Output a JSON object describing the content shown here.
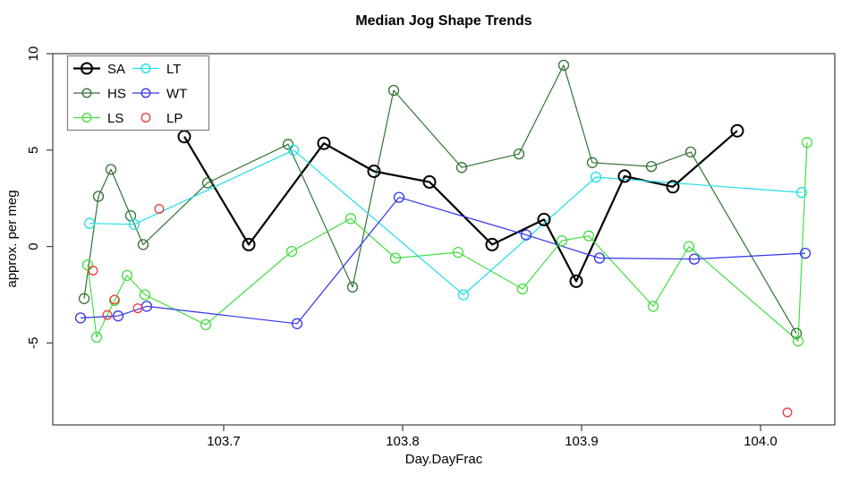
{
  "chart_data": {
    "type": "line",
    "title": "Median Jog Shape Trends",
    "xlabel": "Day.DayFrac",
    "ylabel": "approx. per meg",
    "xlim": [
      103.6045,
      104.0415
    ],
    "ylim": [
      -9.25,
      10
    ],
    "x_ticks": [
      103.7,
      103.8,
      103.9,
      104.0
    ],
    "x_tick_labels": [
      "103.7",
      "103.8",
      "103.9",
      "104.0"
    ],
    "y_ticks": [
      -5,
      0,
      5,
      10
    ],
    "y_tick_labels": [
      "-5",
      "0",
      "5",
      "10"
    ],
    "grid": false,
    "frame_color": "#4d4d4d",
    "text_color": "#000000",
    "legend_position": "top-left",
    "legend_columns": [
      [
        "SA",
        "HS",
        "LS"
      ],
      [
        "LT",
        "WT",
        "LP"
      ]
    ],
    "series": [
      {
        "name": "SA",
        "color": "#000000",
        "line": true,
        "marker": "circle-open",
        "line_width": 2.2,
        "marker_radius": 6.5,
        "marker_stroke": 2.0,
        "points": [
          [
            103.678,
            5.7
          ],
          [
            103.714,
            0.1
          ],
          [
            103.756,
            5.35
          ],
          [
            103.784,
            3.9
          ],
          [
            103.815,
            3.35
          ],
          [
            103.85,
            0.1
          ],
          [
            103.879,
            1.4
          ],
          [
            103.897,
            -1.8
          ],
          [
            103.924,
            3.65
          ],
          [
            103.951,
            3.1
          ],
          [
            103.987,
            6.0
          ]
        ]
      },
      {
        "name": "HS",
        "color": "#327232",
        "line": true,
        "marker": "circle-open",
        "line_width": 1.2,
        "marker_radius": 5.5,
        "marker_stroke": 1.3,
        "points": [
          [
            103.622,
            -2.7
          ],
          [
            103.63,
            2.6
          ],
          [
            103.637,
            4.0
          ],
          [
            103.648,
            1.6
          ],
          [
            103.655,
            0.1
          ],
          [
            103.691,
            3.3
          ],
          [
            103.736,
            5.3
          ],
          [
            103.772,
            -2.1
          ],
          [
            103.795,
            8.1
          ],
          [
            103.833,
            4.1
          ],
          [
            103.865,
            4.8
          ],
          [
            103.89,
            9.4
          ],
          [
            103.906,
            4.35
          ],
          [
            103.939,
            4.15
          ],
          [
            103.961,
            4.9
          ],
          [
            104.02,
            -4.5
          ]
        ]
      },
      {
        "name": "LS",
        "color": "#44dd44",
        "line": true,
        "marker": "circle-open",
        "line_width": 1.2,
        "marker_radius": 5.5,
        "marker_stroke": 1.3,
        "points": [
          [
            103.624,
            -0.95
          ],
          [
            103.629,
            -4.7
          ],
          [
            103.639,
            -2.8
          ],
          [
            103.646,
            -1.5
          ],
          [
            103.656,
            -2.5
          ],
          [
            103.69,
            -4.05
          ],
          [
            103.738,
            -0.25
          ],
          [
            103.771,
            1.45
          ],
          [
            103.796,
            -0.6
          ],
          [
            103.831,
            -0.3
          ],
          [
            103.867,
            -2.2
          ],
          [
            103.889,
            0.3
          ],
          [
            103.904,
            0.55
          ],
          [
            103.94,
            -3.1
          ],
          [
            103.96,
            0.0
          ],
          [
            104.021,
            -4.9
          ],
          [
            104.026,
            5.4
          ]
        ]
      },
      {
        "name": "LT",
        "color": "#22dde8",
        "line": true,
        "marker": "circle-open",
        "line_width": 1.2,
        "marker_radius": 5.5,
        "marker_stroke": 1.3,
        "points": [
          [
            103.625,
            1.2
          ],
          [
            103.65,
            1.15
          ],
          [
            103.739,
            5.0
          ],
          [
            103.834,
            -2.5
          ],
          [
            103.908,
            3.6
          ],
          [
            104.023,
            2.8
          ]
        ]
      },
      {
        "name": "WT",
        "color": "#3333ee",
        "line": true,
        "marker": "circle-open",
        "line_width": 1.2,
        "marker_radius": 5.5,
        "marker_stroke": 1.3,
        "points": [
          [
            103.62,
            -3.7
          ],
          [
            103.641,
            -3.6
          ],
          [
            103.657,
            -3.1
          ],
          [
            103.741,
            -4.0
          ],
          [
            103.798,
            2.55
          ],
          [
            103.869,
            0.6
          ],
          [
            103.91,
            -0.6
          ],
          [
            103.963,
            -0.65
          ],
          [
            104.025,
            -0.35
          ]
        ]
      },
      {
        "name": "LP",
        "color": "#ee3b3b",
        "line": false,
        "marker": "circle-open",
        "line_width": 1.2,
        "marker_radius": 4.8,
        "marker_stroke": 1.3,
        "points": [
          [
            103.627,
            -1.25
          ],
          [
            103.635,
            -3.55
          ],
          [
            103.639,
            -2.75
          ],
          [
            103.652,
            -3.2
          ],
          [
            103.664,
            1.95
          ],
          [
            104.015,
            -8.6
          ]
        ]
      }
    ]
  }
}
